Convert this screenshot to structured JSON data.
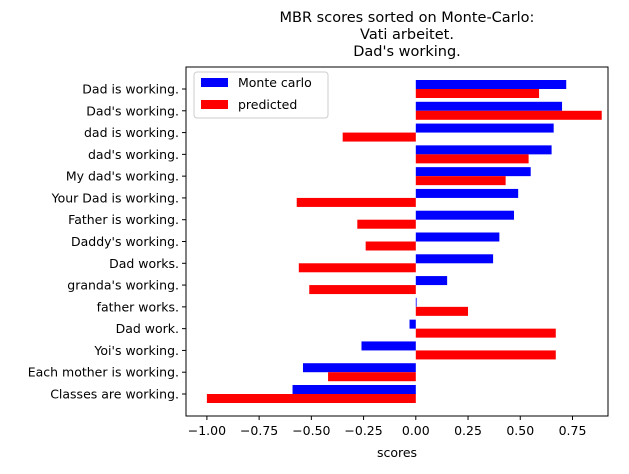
{
  "chart_data": {
    "type": "bar",
    "orientation": "horizontal",
    "title_lines": [
      "MBR scores sorted on Monte-Carlo:",
      "Vati arbeitet.",
      "Dad's working."
    ],
    "xlabel": "scores",
    "ylabel": "",
    "xlim": [
      -1.1,
      0.92
    ],
    "xticks": [
      -1.0,
      -0.75,
      -0.5,
      -0.25,
      0.0,
      0.25,
      0.5,
      0.75
    ],
    "xtick_labels": [
      "−1.00",
      "−0.75",
      "−0.50",
      "−0.25",
      "0.00",
      "0.25",
      "0.50",
      "0.75"
    ],
    "grid": false,
    "legend_position": "upper-left",
    "categories": [
      "Dad is working.",
      "Dad's working.",
      "dad is working.",
      "dad's working.",
      "My dad's working.",
      "Your Dad is working.",
      "Father is working.",
      "Daddy's working.",
      "Dad works.",
      "granda's working.",
      "father works.",
      "Dad work.",
      "Yoi's working.",
      "Each mother is working.",
      "Classes are working."
    ],
    "series": [
      {
        "name": "Monte carlo",
        "color": "#0000ff",
        "values": [
          0.72,
          0.7,
          0.66,
          0.65,
          0.55,
          0.49,
          0.47,
          0.4,
          0.37,
          0.15,
          0.0,
          -0.03,
          -0.26,
          -0.54,
          -0.59
        ]
      },
      {
        "name": "predicted",
        "color": "#ff0000",
        "values": [
          0.59,
          0.89,
          -0.35,
          0.54,
          0.43,
          -0.57,
          -0.28,
          -0.24,
          -0.56,
          -0.51,
          0.25,
          0.67,
          0.67,
          -0.42,
          -1.0
        ]
      }
    ]
  }
}
